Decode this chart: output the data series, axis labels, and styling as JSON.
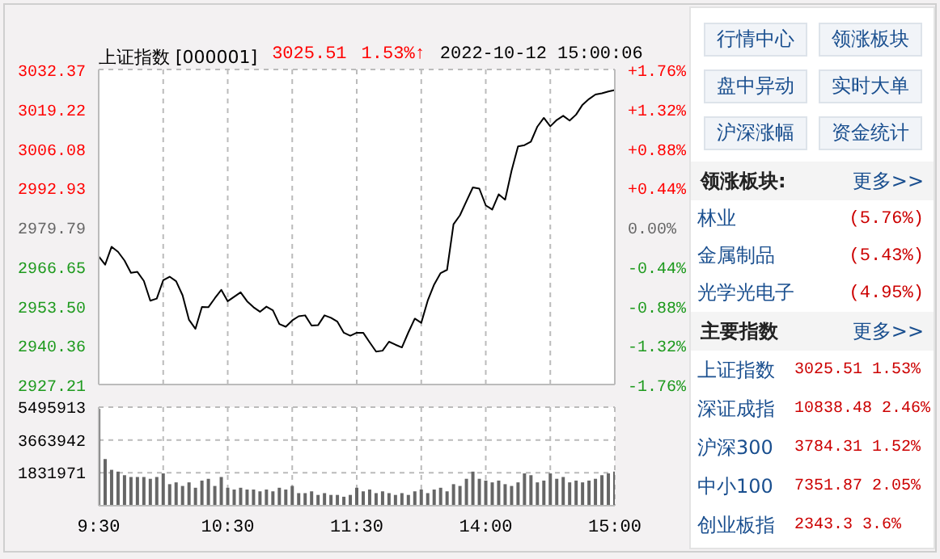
{
  "chart_data": [
    {
      "type": "line",
      "title": "上证指数 [000001]",
      "annotations": [
        "3025.51",
        "1.53%↑",
        "2022-10-12 15:00:06"
      ],
      "categories": [
        null,
        null,
        null,
        null,
        null,
        null,
        null,
        null,
        null,
        null,
        null,
        null,
        null,
        null,
        null,
        null,
        null,
        null,
        null,
        null,
        null,
        null,
        null,
        null,
        null,
        null,
        null,
        null,
        null,
        null,
        null,
        null,
        null,
        null,
        null,
        null,
        null,
        null,
        null,
        null,
        null,
        null,
        null,
        null,
        null,
        null,
        null,
        null,
        null,
        null,
        null,
        null,
        null,
        null,
        null,
        null,
        null,
        null,
        null,
        null,
        null,
        null,
        null,
        null,
        null,
        null,
        null,
        null,
        null,
        null,
        null,
        null,
        null,
        null,
        null,
        null,
        null,
        null,
        null,
        null,
        null
      ],
      "series": [
        {
          "color": "#000000",
          "values": [
            2970.0,
            2967.2,
            2973.2,
            2971.5,
            2968.6,
            2964.5,
            2964.8,
            2961.8,
            2955.2,
            2955.9,
            2962.0,
            2963.2,
            2961.7,
            2957.0,
            2948.8,
            2945.8,
            2953.1,
            2953.0,
            2956.0,
            2958.8,
            2955.0,
            2956.5,
            2958.0,
            2955.0,
            2953.0,
            2951.5,
            2953.2,
            2952.0,
            2947.4,
            2946.5,
            2948.6,
            2950.0,
            2950.3,
            2946.9,
            2947.0,
            2950.3,
            2949.5,
            2948.2,
            2944.5,
            2943.5,
            2944.5,
            2944.5,
            2941.3,
            2938.2,
            2938.5,
            2941.5,
            2940.5,
            2939.6,
            2944.6,
            2949.2,
            2947.8,
            2955.2,
            2960.6,
            2964.4,
            2965.5,
            2980.7,
            2983.7,
            2988.4,
            2993.0,
            2992.6,
            2987.0,
            2985.6,
            2990.7,
            2988.9,
            2998.6,
            3006.7,
            3007.1,
            3008.3,
            3013.3,
            3016.2,
            3013.4,
            3015.5,
            3016.9,
            3015.3,
            3017.3,
            3020.6,
            3022.5,
            3024.0,
            3024.4,
            3025.0,
            3025.5
          ]
        }
      ],
      "ylim": [
        2927.21,
        3032.37
      ],
      "yticks": [
        2927.21,
        2940.36,
        {
          "value": 2953.5,
          "label": "2953.50"
        },
        2966.65,
        2979.79,
        2992.93,
        3006.08,
        3019.22,
        3032.37
      ],
      "y2lim": [
        -1.76,
        1.76
      ],
      "y2ticks": [
        {
          "value": -1.76,
          "label": "-1.76%"
        },
        {
          "value": -1.32,
          "label": "-1.32%"
        },
        {
          "value": -0.88,
          "label": "-0.88%"
        },
        {
          "value": -0.44,
          "label": "-0.44%"
        },
        {
          "value": 0,
          "label": "0.00%"
        },
        {
          "value": 0.44,
          "label": "+0.44%"
        },
        {
          "value": 0.88,
          "label": "+0.88%"
        },
        {
          "value": 1.32,
          "label": "+1.32%"
        },
        {
          "value": 1.76,
          "label": "+1.76%"
        }
      ],
      "grid": true
    },
    {
      "type": "bar",
      "categories": [
        "9:30",
        null,
        null,
        null,
        null,
        null,
        null,
        null,
        null,
        null,
        null,
        null,
        null,
        null,
        null,
        null,
        null,
        null,
        null,
        null,
        "10:30",
        null,
        null,
        null,
        null,
        null,
        null,
        null,
        null,
        null,
        null,
        null,
        null,
        null,
        null,
        null,
        null,
        null,
        null,
        null,
        "11:30",
        null,
        null,
        null,
        null,
        null,
        null,
        null,
        null,
        null,
        null,
        null,
        null,
        null,
        null,
        null,
        null,
        null,
        null,
        null,
        "14:00",
        null,
        null,
        null,
        null,
        null,
        null,
        null,
        null,
        null,
        null,
        null,
        null,
        null,
        null,
        null,
        null,
        null,
        null,
        null,
        "15:00"
      ],
      "series": [
        {
          "color": "#666666",
          "values": [
            5400000,
            2600000,
            2000000,
            1900000,
            1700000,
            1600000,
            1600000,
            1600000,
            1500000,
            1600000,
            1800000,
            1200000,
            1300000,
            1100000,
            1300000,
            1000000,
            1400000,
            1500000,
            1100000,
            1600000,
            1000000,
            900000,
            1000000,
            900000,
            900000,
            800000,
            900000,
            800000,
            1000000,
            900000,
            1100000,
            700000,
            700000,
            800000,
            600000,
            700000,
            600000,
            600000,
            500000,
            600000,
            1000000,
            800000,
            900000,
            700000,
            800000,
            700000,
            600000,
            700000,
            600000,
            800000,
            900000,
            700000,
            900000,
            1000000,
            800000,
            1200000,
            1100000,
            1500000,
            1900000,
            1500000,
            1400000,
            1300000,
            1400000,
            1200000,
            1100000,
            1300000,
            1800000,
            1700000,
            1300000,
            1400000,
            1800000,
            1500000,
            1600000,
            1300000,
            1400000,
            1300000,
            1400000,
            1500000,
            1700000,
            1800000,
            1900000
          ]
        }
      ],
      "ylim": [
        0,
        5495913
      ],
      "yticks": [
        {
          "value": 0,
          "label": null
        },
        1831971,
        3663942,
        5495913
      ],
      "grid": true
    },
    {
      "type": "other",
      "annotations": [
        "行情中心",
        "领涨板块",
        "盘中异动",
        "实时大单",
        "沪深涨幅",
        "资金统计",
        "领涨板块:",
        "更多>>",
        "林业",
        "(5.76%)",
        "金属制品",
        "(5.43%)",
        "光学光电子",
        "(4.95%)",
        "主要指数",
        "更多>>",
        "上证指数",
        "3025.51 1.53%",
        "深证成指",
        "10838.48 2.46%",
        "沪深300",
        "3784.31 1.52%",
        "中小100",
        "7351.87 2.05%",
        "创业板指",
        "2343.3 3.6%"
      ]
    }
  ]
}
